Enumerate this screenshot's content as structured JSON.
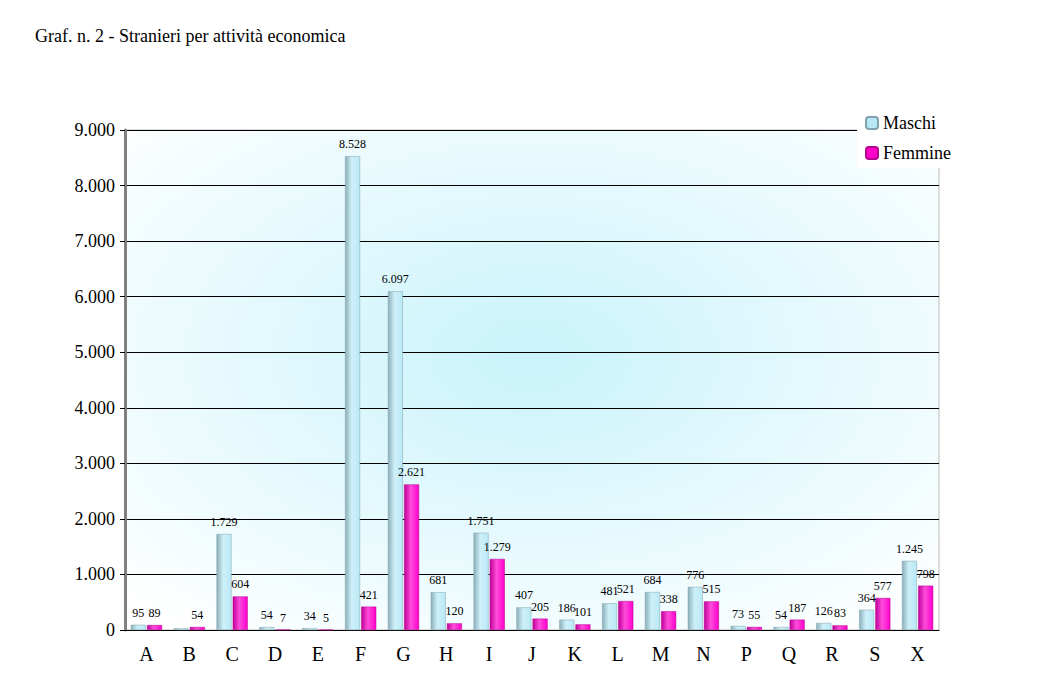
{
  "chart_data": {
    "type": "bar",
    "title": "Graf. n. 2 - Stranieri per attività economica",
    "categories": [
      "A",
      "B",
      "C",
      "D",
      "E",
      "F",
      "G",
      "H",
      "I",
      "J",
      "K",
      "L",
      "M",
      "N",
      "P",
      "Q",
      "R",
      "S",
      "X"
    ],
    "series": [
      {
        "name": "Maschi",
        "color": "#b9e9f7",
        "values": [
          95,
          30,
          1729,
          54,
          34,
          8528,
          6097,
          681,
          1751,
          407,
          186,
          481,
          684,
          776,
          73,
          54,
          126,
          364,
          1245
        ],
        "value_labels": [
          "95",
          null,
          "1.729",
          "54",
          "34",
          "8.528",
          "6.097",
          "681",
          "1.751",
          "407",
          "186",
          "481",
          "684",
          "776",
          "73",
          "54",
          "126",
          "364",
          "1.245"
        ]
      },
      {
        "name": "Femmine",
        "color": "#ff00cc",
        "values": [
          89,
          54,
          604,
          7,
          5,
          421,
          2621,
          120,
          1279,
          205,
          101,
          521,
          338,
          515,
          55,
          187,
          83,
          577,
          798
        ],
        "value_labels": [
          "89",
          "54",
          "604",
          "7",
          "5",
          "421",
          "2.621",
          "120",
          "1.279",
          "205",
          "101",
          "521",
          "338",
          "515",
          "55",
          "187",
          "83",
          "577",
          "798"
        ]
      }
    ],
    "ylim": [
      0,
      9000
    ],
    "yticks": [
      0,
      {
        "value": 1000,
        "label": "1.000"
      },
      {
        "value": 2000,
        "label": "2.000"
      },
      {
        "value": 3000,
        "label": "3.000"
      },
      {
        "value": 4000,
        "label": "4.000"
      },
      {
        "value": 5000,
        "label": "5.000"
      },
      {
        "value": 6000,
        "label": "6.000"
      },
      {
        "value": 7000,
        "label": "7.000"
      },
      {
        "value": 8000,
        "label": "8.000"
      },
      {
        "value": 9000,
        "label": "9.000"
      }
    ],
    "grid": true,
    "legend": "top-right",
    "data_labels": true
  }
}
